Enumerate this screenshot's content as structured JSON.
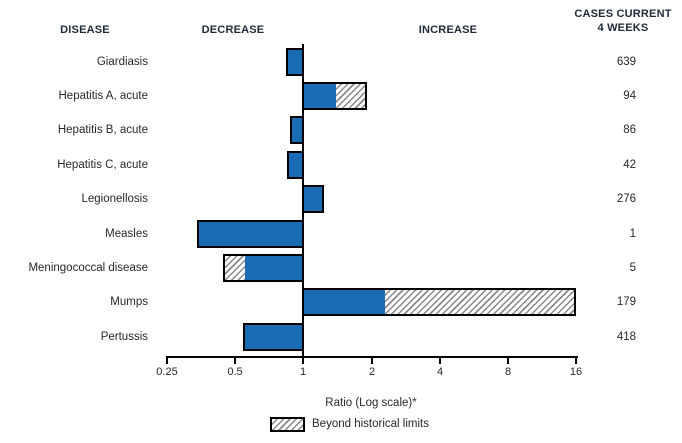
{
  "header": {
    "disease": "DISEASE",
    "decrease": "DECREASE",
    "increase": "INCREASE",
    "cases_line1": "CASES CURRENT",
    "cases_line2": "4 WEEKS"
  },
  "chart_data": {
    "type": "bar",
    "orientation": "horizontal",
    "x_scale": "log2",
    "xlim": [
      0.25,
      16
    ],
    "x_ticks": [
      "0.25",
      "0.5",
      "1",
      "2",
      "4",
      "8",
      "16"
    ],
    "xlabel": "Ratio (Log scale)*",
    "baseline": 1,
    "legend": [
      {
        "label": "Beyond historical limits",
        "style": "hatched"
      }
    ],
    "series": [
      {
        "disease": "Giardiasis",
        "ratio": 0.84,
        "beyond_limit_from": null,
        "cases_current_4_weeks": "639"
      },
      {
        "disease": "Hepatitis A, acute",
        "ratio": 1.87,
        "beyond_limit_from": 1.39,
        "cases_current_4_weeks": "94"
      },
      {
        "disease": "Hepatitis B, acute",
        "ratio": 0.87,
        "beyond_limit_from": null,
        "cases_current_4_weeks": "86"
      },
      {
        "disease": "Hepatitis C, acute",
        "ratio": 0.85,
        "beyond_limit_from": null,
        "cases_current_4_weeks": "42"
      },
      {
        "disease": "Legionellosis",
        "ratio": 1.21,
        "beyond_limit_from": null,
        "cases_current_4_weeks": "276"
      },
      {
        "disease": "Measles",
        "ratio": 0.34,
        "beyond_limit_from": null,
        "cases_current_4_weeks": "1"
      },
      {
        "disease": "Meningococcal disease",
        "ratio": 0.44,
        "beyond_limit_from": 0.54,
        "cases_current_4_weeks": "5"
      },
      {
        "disease": "Mumps",
        "ratio": 15.7,
        "beyond_limit_from": 2.3,
        "cases_current_4_weeks": "179"
      },
      {
        "disease": "Pertussis",
        "ratio": 0.54,
        "beyond_limit_from": null,
        "cases_current_4_weeks": "418"
      }
    ]
  },
  "colors": {
    "bar_blue": "#1a6cb5",
    "bar_border": "#000000",
    "hatch_line": "#85888c",
    "text": "#25282d"
  }
}
